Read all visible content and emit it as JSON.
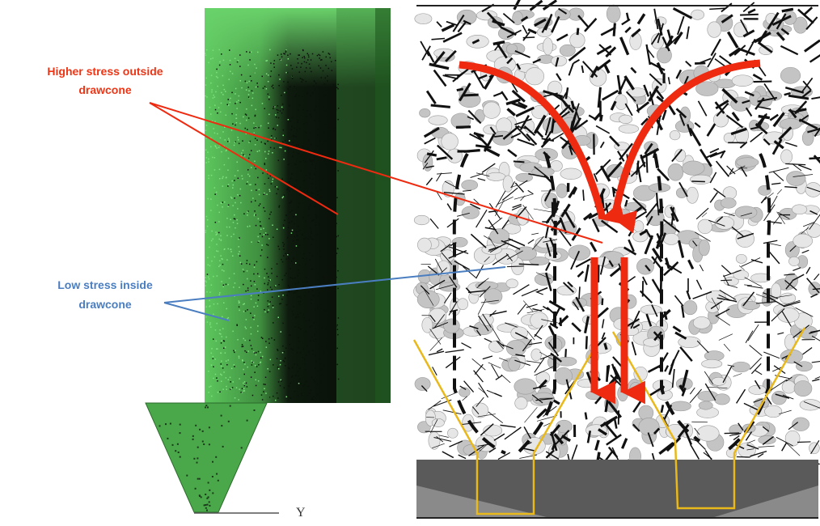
{
  "annotations": [
    {
      "lines": [
        "Higher stress outside",
        "drawcone"
      ]
    },
    {
      "lines": [
        "Low stress inside",
        "drawcone"
      ]
    }
  ],
  "axis_label": "Y"
}
